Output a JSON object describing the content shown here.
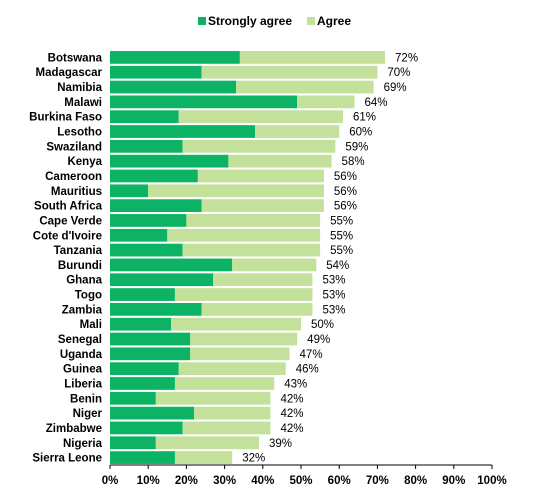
{
  "chart_data": {
    "type": "bar",
    "orientation": "horizontal",
    "stacked": true,
    "categories": [
      "Botswana",
      "Madagascar",
      "Namibia",
      "Malawi",
      "Burkina Faso",
      "Lesotho",
      "Swaziland",
      "Kenya",
      "Cameroon",
      "Mauritius",
      "South Africa",
      "Cape Verde",
      "Cote d'Ivoire",
      "Tanzania",
      "Burundi",
      "Ghana",
      "Togo",
      "Zambia",
      "Mali",
      "Senegal",
      "Uganda",
      "Guinea",
      "Liberia",
      "Benin",
      "Niger",
      "Zimbabwe",
      "Nigeria",
      "Sierra Leone"
    ],
    "series": [
      {
        "name": "Strongly agree",
        "color": "#0db365",
        "values": [
          34,
          24,
          33,
          49,
          18,
          38,
          19,
          31,
          23,
          10,
          24,
          20,
          15,
          19,
          32,
          27,
          17,
          24,
          16,
          21,
          21,
          18,
          17,
          12,
          22,
          19,
          12,
          17
        ]
      },
      {
        "name": "Agree",
        "color": "#c3e19a",
        "values": [
          38,
          46,
          36,
          15,
          43,
          22,
          40,
          27,
          33,
          46,
          32,
          35,
          40,
          36,
          22,
          26,
          36,
          29,
          34,
          28,
          26,
          28,
          26,
          30,
          20,
          23,
          27,
          15
        ]
      }
    ],
    "totals": [
      "72%",
      "70%",
      "69%",
      "64%",
      "61%",
      "60%",
      "59%",
      "58%",
      "56%",
      "56%",
      "56%",
      "55%",
      "55%",
      "55%",
      "54%",
      "53%",
      "53%",
      "53%",
      "50%",
      "49%",
      "47%",
      "46%",
      "43%",
      "42%",
      "42%",
      "42%",
      "39%",
      "32%"
    ],
    "xticks": [
      "0%",
      "10%",
      "20%",
      "30%",
      "40%",
      "50%",
      "60%",
      "70%",
      "80%",
      "90%",
      "100%"
    ],
    "xlim": [
      0,
      100
    ],
    "grid": false,
    "legend_position": "top"
  }
}
